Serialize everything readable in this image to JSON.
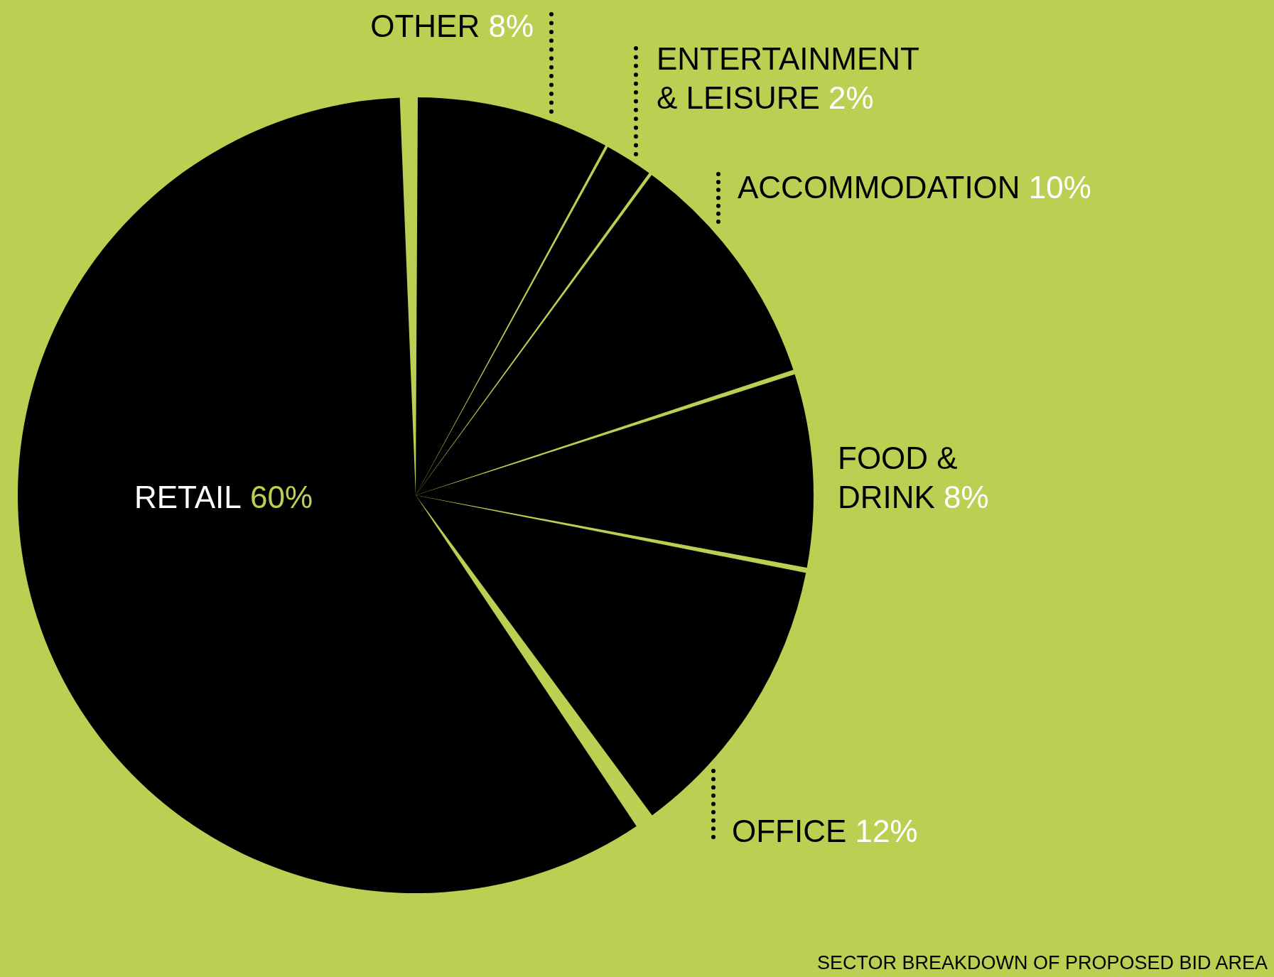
{
  "chart_data": {
    "type": "pie",
    "categories": [
      "OTHER",
      "ENTERTAINMENT & LEISURE",
      "ACCOMMODATION",
      "FOOD & DRINK",
      "OFFICE",
      "RETAIL"
    ],
    "values": [
      8,
      2,
      10,
      8,
      12,
      60
    ],
    "value_labels": [
      "8%",
      "2%",
      "10%",
      "8%",
      "12%",
      "60%"
    ],
    "colors": [
      "#000000",
      "#000000",
      "#000000",
      "#000000",
      "#000000",
      "#000000"
    ],
    "legend": false,
    "annotations": [
      "SECTOR BREAKDOWN OF PROPOSED BID AREA"
    ]
  }
}
